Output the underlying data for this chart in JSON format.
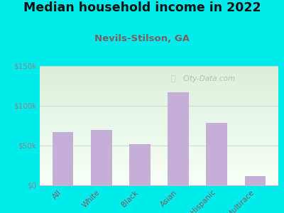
{
  "title": "Median household income in 2022",
  "subtitle": "Nevils-Stilson, GA",
  "categories": [
    "All",
    "White",
    "Black",
    "Asian",
    "Hispanic",
    "Multirace"
  ],
  "values": [
    67000,
    70000,
    52000,
    117000,
    79000,
    12000
  ],
  "bar_color": "#c4afd6",
  "title_fontsize": 12.5,
  "subtitle_fontsize": 9.5,
  "subtitle_color": "#7a6060",
  "title_color": "#111111",
  "background_outer": "#00ecec",
  "background_inner_top": "#ddeedd",
  "background_inner_bottom": "#f8fff8",
  "ylim": [
    0,
    150000
  ],
  "yticks": [
    0,
    50000,
    100000,
    150000
  ],
  "ytick_labels": [
    "$0",
    "$50k",
    "$100k",
    "$150k"
  ],
  "watermark": "City-Data.com",
  "xtick_color": "#7a6060",
  "ytick_color": "#888888",
  "grid_color": "#ccddcc",
  "watermark_color": "#aabbaa"
}
